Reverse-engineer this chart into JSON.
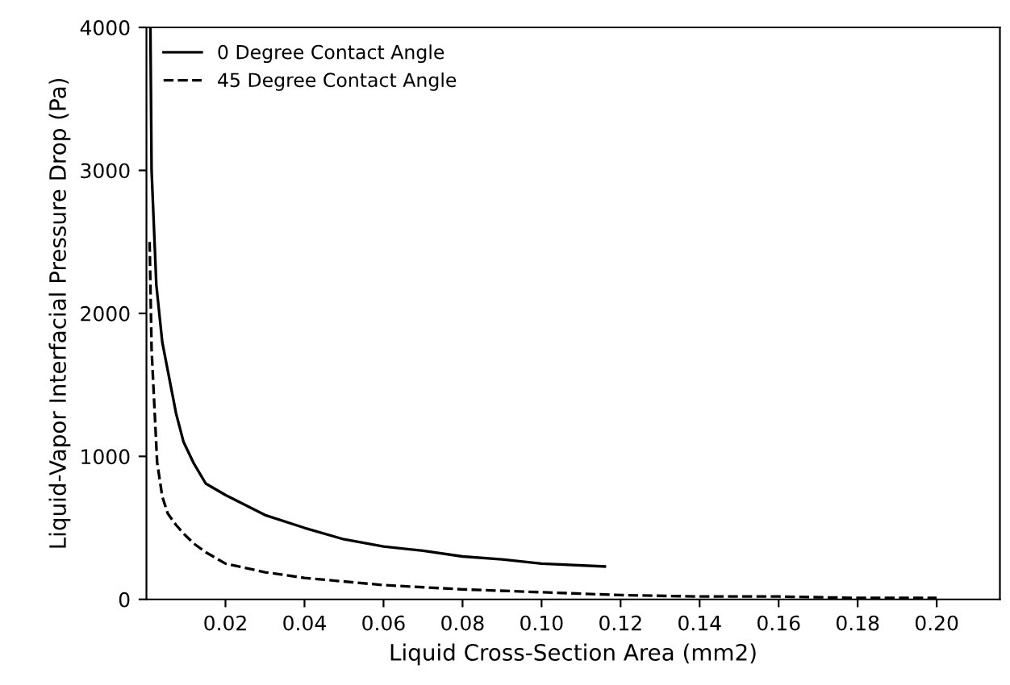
{
  "chart_data": {
    "type": "line",
    "xlabel": "Liquid Cross-Section Area (mm2)",
    "ylabel": "Liquid-Vapor Interfacial Pressure Drop (Pa)",
    "xlim": [
      0,
      0.216
    ],
    "ylim": [
      0,
      4000
    ],
    "xticks": [
      0.02,
      0.04,
      0.06,
      0.08,
      {
        "value": 0.1,
        "label": "0.10"
      },
      0.12,
      0.14,
      0.16,
      0.18,
      {
        "value": 0.2,
        "label": "0.20"
      }
    ],
    "yticks": [
      0,
      1000,
      2000,
      3000,
      4000
    ],
    "legend": "top left",
    "grid": false,
    "series": [
      {
        "name": "0 Degree Contact Angle",
        "color": "#000000",
        "line_style": "solid",
        "x": [
          0.001,
          0.0013,
          0.0025,
          0.004,
          0.0054,
          0.0075,
          0.0094,
          0.012,
          0.015,
          0.02,
          0.03,
          0.04,
          0.05,
          0.06,
          0.07,
          0.08,
          0.09,
          0.1,
          0.116
        ],
        "values": [
          4000,
          3000,
          2200,
          1800,
          1600,
          1300,
          1100,
          950,
          810,
          730,
          590,
          500,
          420,
          370,
          340,
          300,
          280,
          250,
          230
        ]
      },
      {
        "name": "45 Degree Contact Angle",
        "color": "#000000",
        "line_style": "dashed",
        "x": [
          0.0008,
          0.0013,
          0.0027,
          0.004,
          0.0054,
          0.0075,
          0.0094,
          0.012,
          0.015,
          0.02,
          0.03,
          0.04,
          0.06,
          0.08,
          0.1,
          0.12,
          0.14,
          0.16,
          0.18,
          0.2
        ],
        "values": [
          2500,
          1750,
          960,
          720,
          600,
          520,
          460,
          390,
          330,
          250,
          190,
          150,
          100,
          70,
          50,
          30,
          20,
          20,
          10,
          10
        ]
      }
    ]
  }
}
